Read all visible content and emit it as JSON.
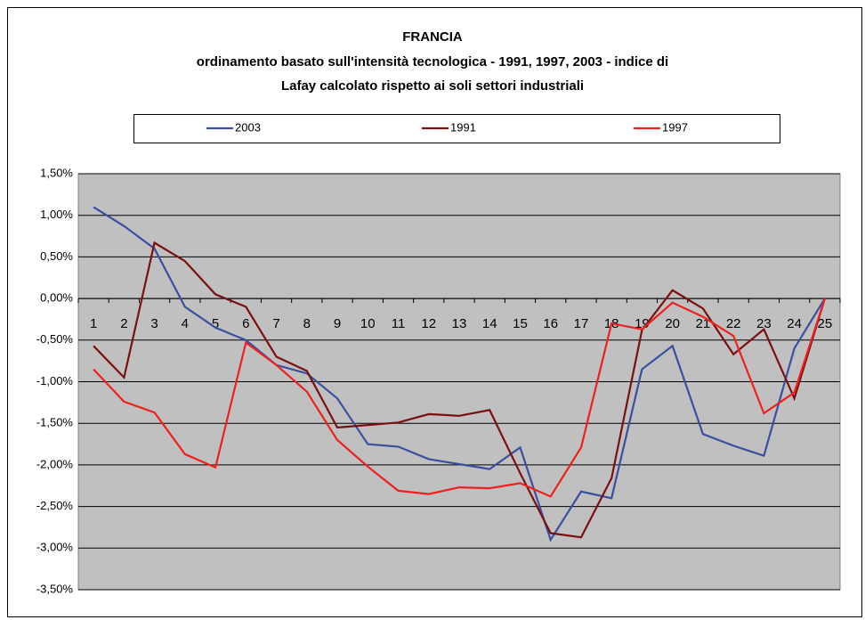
{
  "chart_data": {
    "type": "line",
    "title": "FRANCIA",
    "subtitle": [
      "ordinamento basato sull'intensità tecnologica - 1991, 1997, 2003 - indice di",
      "Lafay calcolato rispetto ai soli settori industriali"
    ],
    "categories": [
      "1",
      "2",
      "3",
      "4",
      "5",
      "6",
      "7",
      "8",
      "9",
      "10",
      "11",
      "12",
      "13",
      "14",
      "15",
      "16",
      "17",
      "18",
      "19",
      "20",
      "21",
      "22",
      "23",
      "24",
      "25"
    ],
    "series": [
      {
        "name": "2003",
        "color": "#3a4fa0",
        "values": [
          1.1,
          0.87,
          0.6,
          -0.1,
          -0.35,
          -0.5,
          -0.8,
          -0.9,
          -1.2,
          -1.75,
          -1.78,
          -1.93,
          -1.99,
          -2.05,
          -1.79,
          -2.9,
          -2.32,
          -2.4,
          -0.85,
          -0.57,
          -1.63,
          -1.77,
          -1.89,
          -0.6,
          0.0
        ]
      },
      {
        "name": "1991",
        "color": "#7a1010",
        "values": [
          -0.57,
          -0.95,
          0.67,
          0.45,
          0.05,
          -0.1,
          -0.7,
          -0.87,
          -1.55,
          -1.52,
          -1.49,
          -1.39,
          -1.41,
          -1.34,
          -2.1,
          -2.82,
          -2.87,
          -2.16,
          -0.38,
          0.1,
          -0.12,
          -0.67,
          -0.37,
          -1.2,
          0.0
        ]
      },
      {
        "name": "1997",
        "color": "#ee2020",
        "values": [
          -0.85,
          -1.24,
          -1.37,
          -1.87,
          -2.03,
          -0.53,
          -0.8,
          -1.12,
          -1.7,
          -2.02,
          -2.31,
          -2.35,
          -2.27,
          -2.28,
          -2.22,
          -2.38,
          -1.79,
          -0.3,
          -0.37,
          -0.05,
          -0.22,
          -0.45,
          -1.38,
          -1.13,
          0.0
        ]
      }
    ],
    "ylim": [
      -3.5,
      1.5
    ],
    "yticks": [
      {
        "value": 1.5,
        "label": "1,50%"
      },
      {
        "value": 1.0,
        "label": "1,00%"
      },
      {
        "value": 0.5,
        "label": "0,50%"
      },
      {
        "value": 0.0,
        "label": "0,00%"
      },
      {
        "value": -0.5,
        "label": "-0,50%"
      },
      {
        "value": -1.0,
        "label": "-1,00%"
      },
      {
        "value": -1.5,
        "label": "-1,50%"
      },
      {
        "value": -2.0,
        "label": "-2,00%"
      },
      {
        "value": -2.5,
        "label": "-2,50%"
      },
      {
        "value": -3.0,
        "label": "-3,00%"
      },
      {
        "value": -3.5,
        "label": "-3,50%"
      }
    ],
    "grid": true,
    "legend": "top"
  }
}
